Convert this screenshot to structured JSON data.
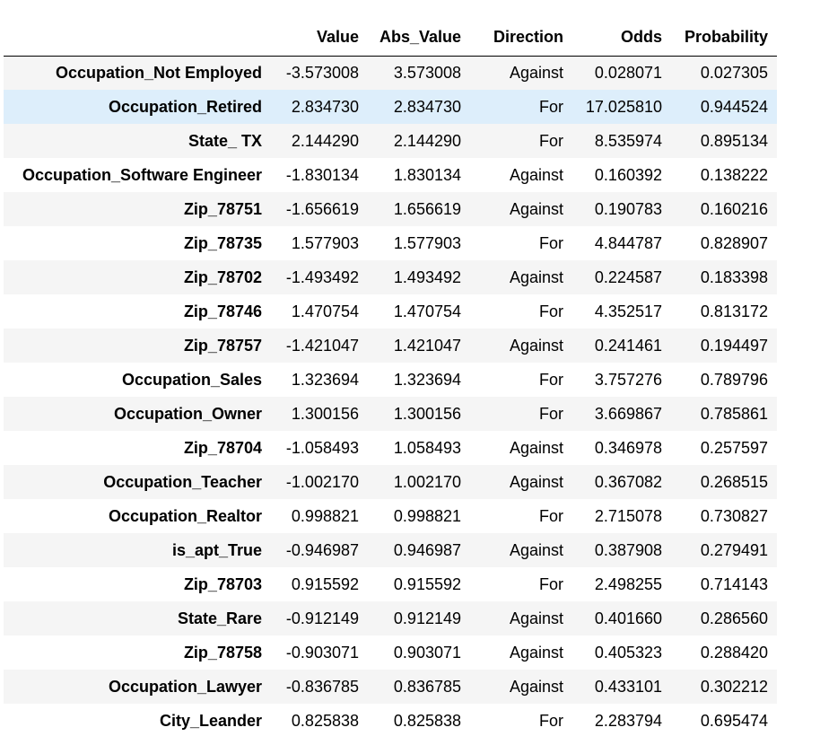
{
  "table": {
    "columns": [
      "",
      "Value",
      "Abs_Value",
      "Direction",
      "Odds",
      "Probability"
    ],
    "rows": [
      {
        "index": "Occupation_Not Employed",
        "value": "-3.573008",
        "abs_value": "3.573008",
        "direction": "Against",
        "odds": "0.028071",
        "probability": "0.027305"
      },
      {
        "index": "Occupation_Retired",
        "value": "2.834730",
        "abs_value": "2.834730",
        "direction": "For",
        "odds": "17.025810",
        "probability": "0.944524"
      },
      {
        "index": "State_ TX",
        "value": "2.144290",
        "abs_value": "2.144290",
        "direction": "For",
        "odds": "8.535974",
        "probability": "0.895134"
      },
      {
        "index": "Occupation_Software Engineer",
        "value": "-1.830134",
        "abs_value": "1.830134",
        "direction": "Against",
        "odds": "0.160392",
        "probability": "0.138222"
      },
      {
        "index": "Zip_78751",
        "value": "-1.656619",
        "abs_value": "1.656619",
        "direction": "Against",
        "odds": "0.190783",
        "probability": "0.160216"
      },
      {
        "index": "Zip_78735",
        "value": "1.577903",
        "abs_value": "1.577903",
        "direction": "For",
        "odds": "4.844787",
        "probability": "0.828907"
      },
      {
        "index": "Zip_78702",
        "value": "-1.493492",
        "abs_value": "1.493492",
        "direction": "Against",
        "odds": "0.224587",
        "probability": "0.183398"
      },
      {
        "index": "Zip_78746",
        "value": "1.470754",
        "abs_value": "1.470754",
        "direction": "For",
        "odds": "4.352517",
        "probability": "0.813172"
      },
      {
        "index": "Zip_78757",
        "value": "-1.421047",
        "abs_value": "1.421047",
        "direction": "Against",
        "odds": "0.241461",
        "probability": "0.194497"
      },
      {
        "index": "Occupation_Sales",
        "value": "1.323694",
        "abs_value": "1.323694",
        "direction": "For",
        "odds": "3.757276",
        "probability": "0.789796"
      },
      {
        "index": "Occupation_Owner",
        "value": "1.300156",
        "abs_value": "1.300156",
        "direction": "For",
        "odds": "3.669867",
        "probability": "0.785861"
      },
      {
        "index": "Zip_78704",
        "value": "-1.058493",
        "abs_value": "1.058493",
        "direction": "Against",
        "odds": "0.346978",
        "probability": "0.257597"
      },
      {
        "index": "Occupation_Teacher",
        "value": "-1.002170",
        "abs_value": "1.002170",
        "direction": "Against",
        "odds": "0.367082",
        "probability": "0.268515"
      },
      {
        "index": "Occupation_Realtor",
        "value": "0.998821",
        "abs_value": "0.998821",
        "direction": "For",
        "odds": "2.715078",
        "probability": "0.730827"
      },
      {
        "index": "is_apt_True",
        "value": "-0.946987",
        "abs_value": "0.946987",
        "direction": "Against",
        "odds": "0.387908",
        "probability": "0.279491"
      },
      {
        "index": "Zip_78703",
        "value": "0.915592",
        "abs_value": "0.915592",
        "direction": "For",
        "odds": "2.498255",
        "probability": "0.714143"
      },
      {
        "index": "State_Rare",
        "value": "-0.912149",
        "abs_value": "0.912149",
        "direction": "Against",
        "odds": "0.401660",
        "probability": "0.286560"
      },
      {
        "index": "Zip_78758",
        "value": "-0.903071",
        "abs_value": "0.903071",
        "direction": "Against",
        "odds": "0.405323",
        "probability": "0.288420"
      },
      {
        "index": "Occupation_Lawyer",
        "value": "-0.836785",
        "abs_value": "0.836785",
        "direction": "Against",
        "odds": "0.433101",
        "probability": "0.302212"
      },
      {
        "index": "City_Leander",
        "value": "0.825838",
        "abs_value": "0.825838",
        "direction": "For",
        "odds": "2.283794",
        "probability": "0.695474"
      }
    ],
    "hovered_row": 1
  },
  "colors": {
    "stripe": "#f5f5f5",
    "hover": "#ddeefb",
    "header_rule": "#000000"
  }
}
